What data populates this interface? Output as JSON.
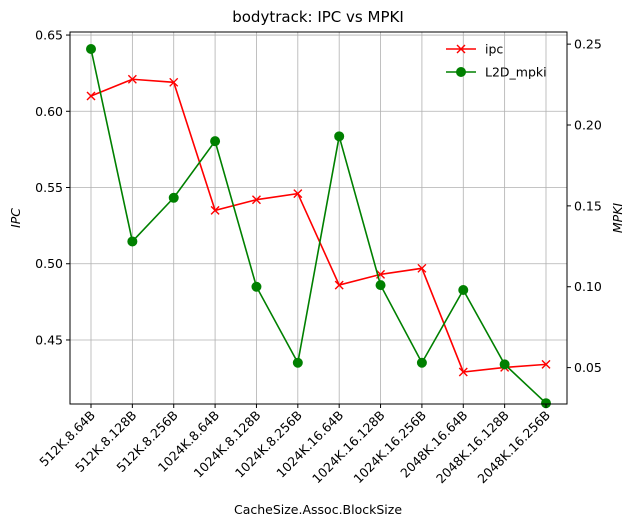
{
  "chart_data": {
    "type": "line",
    "title": "bodytrack: IPC vs MPKI",
    "xlabel": "CacheSize.Assoc.BlockSize",
    "ylabel_left": "IPC",
    "ylabel_right": "MPKI",
    "categories": [
      "512K.8.64B",
      "512K.8.128B",
      "512K.8.256B",
      "1024K.8.64B",
      "1024K.8.128B",
      "1024K.8.256B",
      "1024K.16.64B",
      "1024K.16.128B",
      "1024K.16.256B",
      "2048K.16.64B",
      "2048K.16.128B",
      "2048K.16.256B"
    ],
    "left_axis": {
      "ylim": [
        0.408,
        0.652
      ],
      "ticks": [
        0.45,
        0.5,
        0.55,
        0.6,
        0.65
      ],
      "tick_labels": [
        "0.45",
        "0.50",
        "0.55",
        "0.60",
        "0.65"
      ]
    },
    "right_axis": {
      "ylim": [
        0.0275,
        0.2575
      ],
      "ticks": [
        0.05,
        0.1,
        0.15,
        0.2,
        0.25
      ],
      "tick_labels": [
        "0.05",
        "0.10",
        "0.15",
        "0.20",
        "0.25"
      ]
    },
    "series": [
      {
        "name": "ipc",
        "axis": "left",
        "color": "#ff0000",
        "marker": "x",
        "values": [
          0.61,
          0.621,
          0.619,
          0.535,
          0.542,
          0.546,
          0.486,
          0.493,
          0.497,
          0.429,
          0.432,
          0.434
        ]
      },
      {
        "name": "L2D_mpki",
        "axis": "right",
        "color": "#008000",
        "marker": "o",
        "values": [
          0.247,
          0.128,
          0.155,
          0.19,
          0.1,
          0.053,
          0.193,
          0.101,
          0.053,
          0.098,
          0.052,
          0.028
        ]
      }
    ],
    "grid": true,
    "legend_position": "upper-right"
  }
}
